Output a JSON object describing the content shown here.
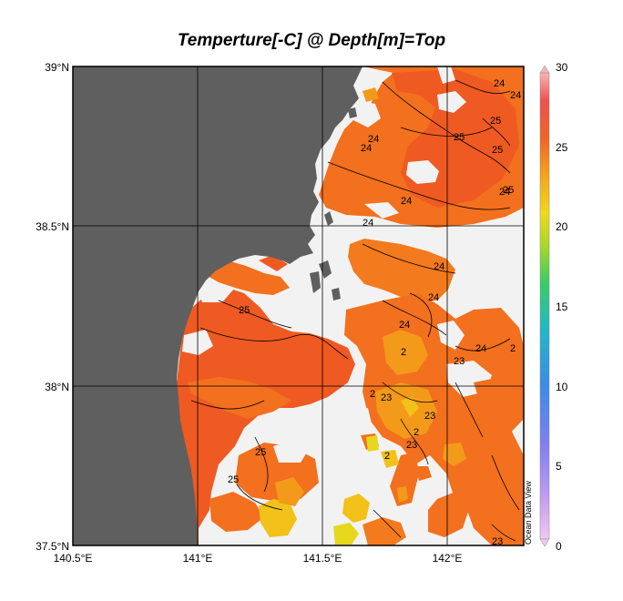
{
  "title": "Temperture[-C] @ Depth[m]=Top",
  "axes": {
    "lat_labels": [
      "39°N",
      "38.5°N",
      "38°N",
      "37.5°N"
    ],
    "lon_labels": [
      "140.5°E",
      "141°E",
      "141.5°E",
      "142°E"
    ]
  },
  "colorbar": {
    "min": 0,
    "max": 30,
    "tick_labels": [
      "30",
      "25",
      "20",
      "15",
      "10",
      "5",
      "0"
    ]
  },
  "contour_labels": [
    "24",
    "24",
    "25",
    "25",
    "24",
    "24",
    "25",
    "24",
    "24",
    "24",
    "25",
    "25",
    "24",
    "24",
    "24",
    "23",
    "23",
    "23",
    "23",
    "2",
    "2",
    "2",
    "2",
    "2",
    "24",
    "25",
    "25",
    "23"
  ],
  "watermark": "Ocean Data View",
  "colors": {
    "land": "#5f5f5f",
    "no_data": "#f2f2f2",
    "temp_25": "#ef5a22",
    "temp_24": "#f47a1e",
    "temp_23": "#f49a1a",
    "temp_22": "#f2c11a",
    "temp_21": "#e6d81c"
  }
}
